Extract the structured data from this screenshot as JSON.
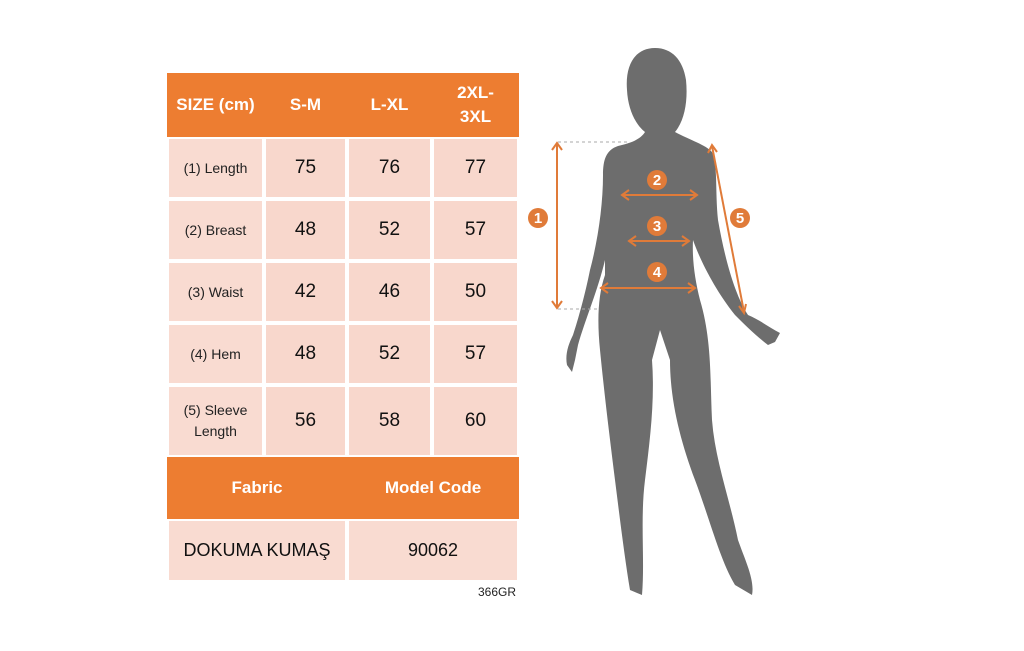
{
  "size_chart": {
    "header": {
      "size_label": "SIZE (cm)",
      "sizes": [
        "S-M",
        "L-XL",
        "2XL-3XL"
      ]
    },
    "rows": [
      {
        "label": "(1) Length",
        "values": [
          "75",
          "76",
          "77"
        ]
      },
      {
        "label": "(2) Breast",
        "values": [
          "48",
          "52",
          "57"
        ]
      },
      {
        "label": "(3) Waist",
        "values": [
          "42",
          "46",
          "50"
        ]
      },
      {
        "label": "(4) Hem",
        "values": [
          "48",
          "52",
          "57"
        ]
      },
      {
        "label": "(5) Sleeve Length",
        "values": [
          "56",
          "58",
          "60"
        ]
      }
    ],
    "fabric_label": "Fabric",
    "model_code_label": "Model Code",
    "fabric_value": "DOKUMA KUMAŞ",
    "model_code_value": "90062"
  },
  "footer_code": "366GR",
  "figure": {
    "markers": [
      "1",
      "2",
      "3",
      "4",
      "5"
    ]
  },
  "colors": {
    "accent": "#ed7d31",
    "cell": "#f8d7cc",
    "silhouette": "#6d6d6d"
  }
}
